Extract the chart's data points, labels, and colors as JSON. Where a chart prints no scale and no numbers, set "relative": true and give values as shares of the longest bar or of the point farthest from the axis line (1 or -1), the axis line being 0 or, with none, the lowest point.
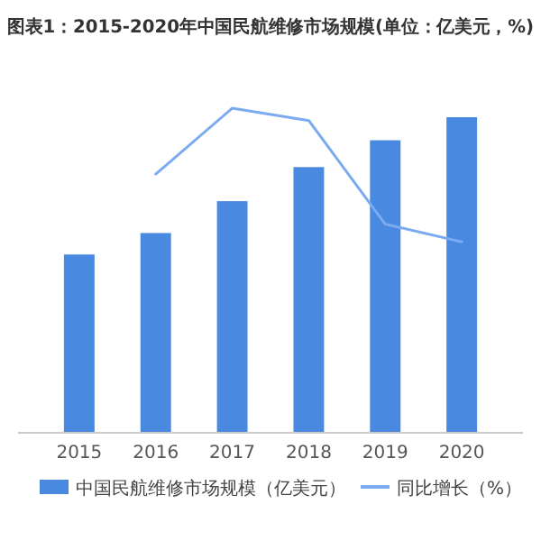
{
  "chart_data": {
    "type": "bar",
    "title": "图表1：2015-2020年中国民航维修市场规模(单位：亿美元，%)",
    "categories": [
      "2015",
      "2016",
      "2017",
      "2018",
      "2019",
      "2020"
    ],
    "relative": true,
    "legend": "bottom",
    "series": [
      {
        "name": "中国民航维修市场规模（亿美元）",
        "color": "#4a89e0",
        "values": [
          0.565,
          0.633,
          0.734,
          0.842,
          0.927,
          1
        ]
      },
      {
        "name": "同比增长（%）",
        "type": "line",
        "axis": "y2",
        "color": "#7aaaf0",
        "values": [
          null,
          0.797,
          1,
          0.962,
          0.643,
          0.588
        ]
      }
    ]
  }
}
